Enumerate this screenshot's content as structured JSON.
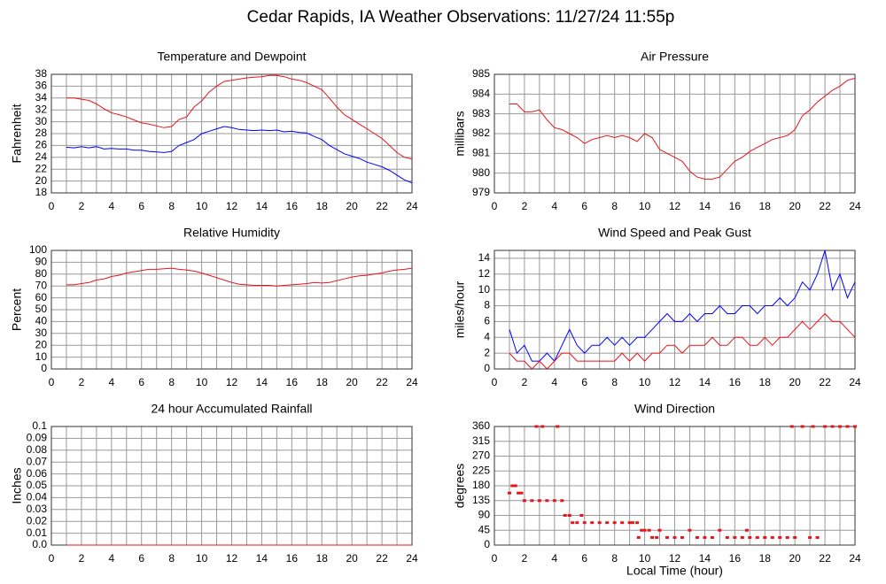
{
  "title": "Cedar Rapids, IA Weather Observations: 11/27/24 11:55p",
  "chart_data": [
    {
      "type": "line",
      "title": "Temperature and Dewpoint",
      "ylabel": "Fahrenheit",
      "x": [
        1,
        1.5,
        2,
        2.5,
        3,
        3.5,
        4,
        4.5,
        5,
        5.5,
        6,
        6.5,
        7,
        7.5,
        8,
        8.5,
        9,
        9.5,
        10,
        10.5,
        11,
        11.5,
        12,
        12.5,
        13,
        13.5,
        14,
        14.5,
        15,
        15.5,
        16,
        16.5,
        17,
        17.5,
        18,
        18.5,
        19,
        19.5,
        20,
        20.5,
        21,
        21.5,
        22,
        22.5,
        23,
        23.5,
        24
      ],
      "series": [
        {
          "color": "#e8141c",
          "values": [
            34,
            34,
            33.8,
            33.6,
            33,
            32.2,
            31.5,
            31.2,
            30.8,
            30.3,
            29.8,
            29.6,
            29.3,
            29,
            29.2,
            30.4,
            30.8,
            32.5,
            33.5,
            35,
            36,
            36.8,
            37,
            37.2,
            37.4,
            37.5,
            37.6,
            37.8,
            37.8,
            37.6,
            37.2,
            37,
            36.6,
            36,
            35.4,
            34,
            32.5,
            31.2,
            30.4,
            29.6,
            28.8,
            28,
            27.2,
            26,
            24.8,
            24,
            23.7
          ]
        },
        {
          "color": "#0000ff",
          "values": [
            25.7,
            25.6,
            25.8,
            25.6,
            25.8,
            25.4,
            25.5,
            25.4,
            25.4,
            25.2,
            25.2,
            25,
            24.9,
            24.8,
            25,
            26,
            26.5,
            27,
            28,
            28.4,
            28.8,
            29.2,
            29,
            28.7,
            28.6,
            28.5,
            28.6,
            28.5,
            28.6,
            28.3,
            28.4,
            28.2,
            28.1,
            27.5,
            27,
            26,
            25.3,
            24.6,
            24.2,
            23.8,
            23.2,
            22.8,
            22.4,
            21.8,
            21,
            20.2,
            19.7
          ]
        }
      ],
      "xlim": [
        0,
        24
      ],
      "xticks": [
        0,
        2,
        4,
        6,
        8,
        10,
        12,
        14,
        16,
        18,
        20,
        22,
        24
      ],
      "x_minor_ticks": [
        1,
        3,
        5,
        7,
        9,
        11,
        13,
        15,
        17,
        19,
        21,
        23
      ],
      "ylim": [
        18,
        38
      ],
      "yticks": [
        18,
        20,
        22,
        24,
        26,
        28,
        30,
        32,
        34,
        36,
        38
      ],
      "grid": true
    },
    {
      "type": "line",
      "title": "Air Pressure",
      "ylabel": "millibars",
      "x": [
        1,
        1.5,
        2,
        2.5,
        3,
        3.5,
        4,
        4.5,
        5,
        5.5,
        6,
        6.5,
        7,
        7.5,
        8,
        8.5,
        9,
        9.5,
        10,
        10.5,
        11,
        11.5,
        12,
        12.5,
        13,
        13.5,
        14,
        14.5,
        15,
        15.5,
        16,
        16.5,
        17,
        17.5,
        18,
        18.5,
        19,
        19.5,
        20,
        20.5,
        21,
        21.5,
        22,
        22.5,
        23,
        23.5,
        24
      ],
      "series": [
        {
          "color": "#e8141c",
          "values": [
            983.5,
            983.5,
            983.1,
            983.1,
            983.2,
            982.7,
            982.3,
            982.2,
            982,
            981.8,
            981.5,
            981.7,
            981.8,
            981.9,
            981.8,
            981.9,
            981.8,
            981.6,
            982,
            981.8,
            981.2,
            981,
            980.8,
            980.6,
            980.1,
            979.8,
            979.7,
            979.7,
            979.8,
            980.2,
            980.6,
            980.8,
            981.1,
            981.3,
            981.5,
            981.7,
            981.8,
            981.9,
            982.2,
            982.9,
            983.2,
            983.6,
            983.9,
            984.2,
            984.4,
            984.7,
            984.8
          ]
        }
      ],
      "xlim": [
        0,
        24
      ],
      "xticks": [
        0,
        2,
        4,
        6,
        8,
        10,
        12,
        14,
        16,
        18,
        20,
        22,
        24
      ],
      "x_minor_ticks": [
        1,
        3,
        5,
        7,
        9,
        11,
        13,
        15,
        17,
        19,
        21,
        23
      ],
      "ylim": [
        979,
        985
      ],
      "yticks": [
        979,
        980,
        981,
        982,
        983,
        984,
        985
      ],
      "grid": true
    },
    {
      "type": "line",
      "title": "Relative Humidity",
      "ylabel": "Percent",
      "x": [
        1,
        1.5,
        2,
        2.5,
        3,
        3.5,
        4,
        4.5,
        5,
        5.5,
        6,
        6.5,
        7,
        7.5,
        8,
        8.5,
        9,
        9.5,
        10,
        10.5,
        11,
        11.5,
        12,
        12.5,
        13,
        13.5,
        14,
        14.5,
        15,
        15.5,
        16,
        16.5,
        17,
        17.5,
        18,
        18.5,
        19,
        19.5,
        20,
        20.5,
        21,
        21.5,
        22,
        22.5,
        23,
        23.5,
        24
      ],
      "series": [
        {
          "color": "#e8141c",
          "values": [
            71,
            71,
            72,
            73,
            75,
            76,
            78,
            79,
            81,
            82,
            83,
            84,
            84,
            84.5,
            85,
            84,
            83.5,
            82.5,
            81,
            79,
            77,
            75,
            73,
            71.5,
            71,
            70.5,
            70.5,
            70.5,
            70,
            70.5,
            71,
            71.5,
            72,
            73,
            72.5,
            73,
            74.5,
            76,
            77.5,
            78.5,
            79,
            80,
            81,
            82.5,
            83.5,
            84,
            85
          ]
        }
      ],
      "xlim": [
        0,
        24
      ],
      "xticks": [
        0,
        2,
        4,
        6,
        8,
        10,
        12,
        14,
        16,
        18,
        20,
        22,
        24
      ],
      "x_minor_ticks": [
        1,
        3,
        5,
        7,
        9,
        11,
        13,
        15,
        17,
        19,
        21,
        23
      ],
      "ylim": [
        0,
        100
      ],
      "yticks": [
        0,
        10,
        20,
        30,
        40,
        50,
        60,
        70,
        80,
        90,
        100
      ],
      "grid": true
    },
    {
      "type": "line",
      "title": "Wind Speed and Peak Gust",
      "ylabel": "miles/hour",
      "x": [
        1,
        1.5,
        2,
        2.5,
        3,
        3.5,
        4,
        4.5,
        5,
        5.5,
        6,
        6.5,
        7,
        7.5,
        8,
        8.5,
        9,
        9.5,
        10,
        10.5,
        11,
        11.5,
        12,
        12.5,
        13,
        13.5,
        14,
        14.5,
        15,
        15.5,
        16,
        16.5,
        17,
        17.5,
        18,
        18.5,
        19,
        19.5,
        20,
        20.5,
        21,
        21.5,
        22,
        22.5,
        23,
        23.5,
        24
      ],
      "series": [
        {
          "color": "#0000ff",
          "values": [
            5,
            2,
            3,
            1,
            1,
            2,
            1,
            3,
            5,
            3,
            2,
            3,
            3,
            4,
            3,
            4,
            3,
            4,
            4,
            5,
            6,
            7,
            6,
            6,
            7,
            6,
            7,
            7,
            8,
            7,
            7,
            8,
            8,
            7,
            8,
            8,
            9,
            8,
            9,
            11,
            10,
            12,
            15,
            10,
            12,
            9,
            11
          ]
        },
        {
          "color": "#e8141c",
          "values": [
            2,
            1,
            1,
            0,
            1,
            0,
            1,
            2,
            2,
            1,
            1,
            1,
            1,
            1,
            1,
            2,
            1,
            2,
            1,
            2,
            2,
            3,
            3,
            2,
            3,
            3,
            3,
            4,
            3,
            3,
            4,
            4,
            3,
            3,
            4,
            3,
            4,
            4,
            5,
            6,
            5,
            6,
            7,
            6,
            6,
            5,
            4
          ]
        }
      ],
      "xlim": [
        0,
        24
      ],
      "xticks": [
        0,
        2,
        4,
        6,
        8,
        10,
        12,
        14,
        16,
        18,
        20,
        22,
        24
      ],
      "x_minor_ticks": [
        1,
        3,
        5,
        7,
        9,
        11,
        13,
        15,
        17,
        19,
        21,
        23
      ],
      "ylim": [
        0,
        15
      ],
      "yticks": [
        0,
        2,
        4,
        6,
        8,
        10,
        12,
        14
      ],
      "grid": true
    },
    {
      "type": "line",
      "title": "24 hour Accumulated Rainfall",
      "ylabel": "Inches",
      "x": [
        1,
        24
      ],
      "series": [
        {
          "color": "#e8141c",
          "values": [
            0,
            0
          ]
        }
      ],
      "xlim": [
        0,
        24
      ],
      "xticks": [
        0,
        2,
        4,
        6,
        8,
        10,
        12,
        14,
        16,
        18,
        20,
        22,
        24
      ],
      "x_minor_ticks": [
        1,
        3,
        5,
        7,
        9,
        11,
        13,
        15,
        17,
        19,
        21,
        23
      ],
      "ylim": [
        0,
        0.1
      ],
      "yticks": [
        {
          "value": 0,
          "label": "0.0"
        },
        0.01,
        0.02,
        0.03,
        0.04,
        0.05,
        0.06,
        0.07,
        0.08,
        0.09,
        0.1
      ],
      "grid": true
    },
    {
      "type": "scatter",
      "title": "Wind Direction",
      "ylabel": "degrees",
      "xlabel": "Local Time (hour)",
      "color": "#e8141c",
      "x": [
        1,
        1.2,
        1.4,
        1.6,
        1.8,
        2,
        2.5,
        2.8,
        3,
        3.2,
        3.5,
        4,
        4.2,
        4.5,
        4.7,
        5,
        5.2,
        5.5,
        5.8,
        6,
        6.5,
        7,
        7.5,
        8,
        8.5,
        9,
        9.2,
        9.5,
        9.6,
        9.8,
        10,
        10.3,
        10.5,
        10.8,
        11,
        11.5,
        12,
        12.5,
        13,
        13.5,
        14,
        14.5,
        15,
        15.5,
        16,
        16.5,
        16.8,
        17,
        17.5,
        18,
        18.5,
        19,
        19.5,
        19.8,
        20,
        20.5,
        21,
        21.2,
        21.5,
        22,
        22.5,
        23,
        23.5,
        24
      ],
      "values": [
        158,
        180,
        180,
        158,
        158,
        135,
        135,
        360,
        135,
        360,
        135,
        135,
        360,
        135,
        90,
        90,
        68,
        68,
        90,
        68,
        68,
        68,
        68,
        68,
        68,
        68,
        68,
        68,
        23,
        45,
        45,
        45,
        23,
        23,
        45,
        23,
        23,
        23,
        45,
        23,
        23,
        23,
        45,
        23,
        23,
        23,
        45,
        23,
        23,
        23,
        23,
        23,
        23,
        360,
        23,
        360,
        23,
        360,
        23,
        360,
        360,
        360,
        360,
        360
      ],
      "xlim": [
        0,
        24
      ],
      "xticks": [
        0,
        2,
        4,
        6,
        8,
        10,
        12,
        14,
        16,
        18,
        20,
        22,
        24
      ],
      "x_minor_ticks": [
        1,
        3,
        5,
        7,
        9,
        11,
        13,
        15,
        17,
        19,
        21,
        23
      ],
      "ylim": [
        0,
        360
      ],
      "yticks": [
        0,
        45,
        90,
        135,
        180,
        225,
        270,
        315,
        360
      ],
      "grid": true
    }
  ]
}
